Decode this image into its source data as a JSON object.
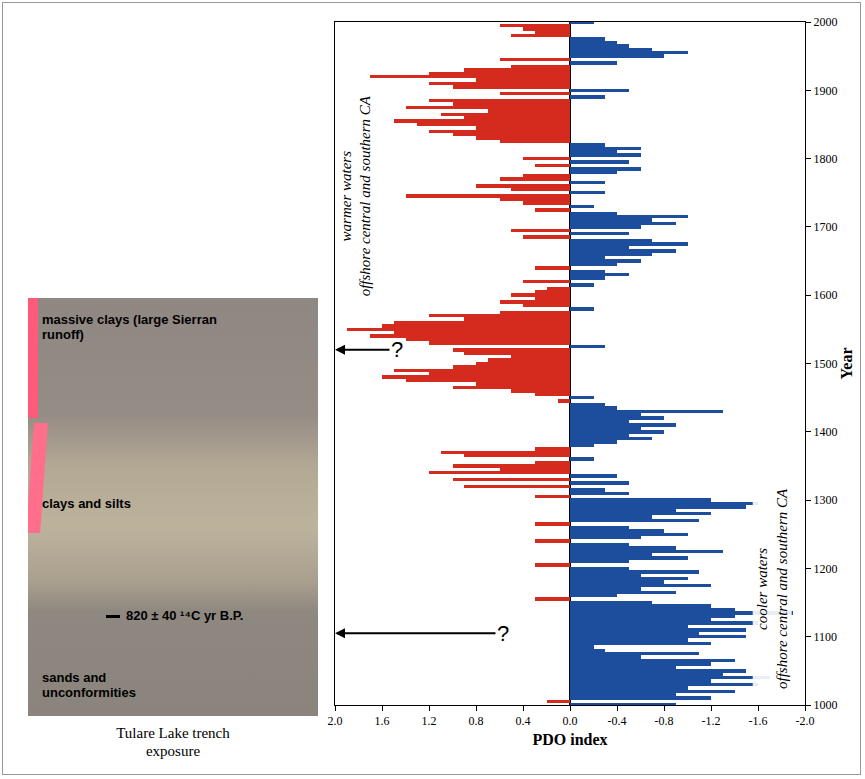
{
  "chart_data": {
    "type": "bar",
    "orientation": "horizontal",
    "xlabel": "PDO index",
    "ylabel": "Year",
    "xlim": [
      2.0,
      -2.0
    ],
    "xticks": [
      {
        "value": 2.0,
        "label": "2.0"
      },
      1.6,
      1.2,
      0.8,
      0.4,
      {
        "value": 0,
        "label": "0.0"
      },
      -0.4,
      -0.8,
      -1.2,
      -1.6,
      {
        "value": -2.0,
        "label": "-2.0"
      }
    ],
    "ylim": [
      1000,
      2000
    ],
    "yticks": [
      1000,
      1100,
      1200,
      1300,
      1400,
      1500,
      1600,
      1700,
      1800,
      1900,
      2000
    ],
    "grid": false,
    "y": [
      1000,
      1005,
      1010,
      1015,
      1020,
      1025,
      1030,
      1035,
      1040,
      1045,
      1050,
      1055,
      1060,
      1065,
      1070,
      1075,
      1080,
      1085,
      1090,
      1095,
      1100,
      1105,
      1110,
      1115,
      1120,
      1125,
      1130,
      1135,
      1140,
      1145,
      1150,
      1155,
      1160,
      1165,
      1170,
      1175,
      1180,
      1185,
      1190,
      1195,
      1200,
      1205,
      1210,
      1215,
      1220,
      1225,
      1230,
      1235,
      1240,
      1245,
      1250,
      1255,
      1260,
      1265,
      1270,
      1275,
      1280,
      1285,
      1290,
      1295,
      1300,
      1305,
      1310,
      1315,
      1320,
      1325,
      1330,
      1335,
      1340,
      1345,
      1350,
      1355,
      1360,
      1365,
      1370,
      1375,
      1380,
      1385,
      1390,
      1395,
      1400,
      1405,
      1410,
      1415,
      1420,
      1425,
      1430,
      1435,
      1440,
      1445,
      1450,
      1455,
      1460,
      1465,
      1470,
      1475,
      1480,
      1485,
      1490,
      1495,
      1500,
      1505,
      1510,
      1515,
      1520,
      1525,
      1530,
      1535,
      1540,
      1545,
      1550,
      1555,
      1560,
      1565,
      1570,
      1575,
      1580,
      1585,
      1590,
      1595,
      1600,
      1605,
      1610,
      1615,
      1620,
      1625,
      1630,
      1635,
      1640,
      1645,
      1650,
      1655,
      1660,
      1665,
      1670,
      1675,
      1680,
      1685,
      1690,
      1695,
      1700,
      1705,
      1710,
      1715,
      1720,
      1725,
      1730,
      1735,
      1740,
      1745,
      1750,
      1755,
      1760,
      1765,
      1770,
      1775,
      1780,
      1785,
      1790,
      1795,
      1800,
      1805,
      1810,
      1815,
      1820,
      1825,
      1830,
      1835,
      1840,
      1845,
      1850,
      1855,
      1860,
      1865,
      1870,
      1875,
      1880,
      1885,
      1890,
      1895,
      1900,
      1905,
      1910,
      1915,
      1920,
      1925,
      1930,
      1935,
      1940,
      1945,
      1950,
      1955,
      1960,
      1965,
      1970,
      1975,
      1980,
      1985,
      1990,
      1995,
      2000
    ],
    "series": [
      {
        "color": "#d52b1e",
        "values": [
          null,
          0.2,
          null,
          null,
          null,
          null,
          null,
          null,
          null,
          null,
          null,
          null,
          null,
          null,
          null,
          null,
          null,
          null,
          null,
          null,
          null,
          null,
          null,
          null,
          null,
          null,
          null,
          null,
          null,
          null,
          null,
          0.3,
          null,
          null,
          null,
          null,
          null,
          null,
          null,
          null,
          null,
          0.3,
          null,
          null,
          null,
          null,
          null,
          null,
          0.3,
          null,
          null,
          null,
          null,
          0.3,
          null,
          null,
          null,
          null,
          null,
          null,
          null,
          0.3,
          null,
          null,
          0.9,
          null,
          1.0,
          null,
          1.2,
          0.6,
          1.0,
          0.3,
          null,
          0.9,
          1.1,
          0.3,
          null,
          null,
          null,
          null,
          null,
          null,
          null,
          null,
          null,
          null,
          null,
          null,
          null,
          0.1,
          null,
          0.3,
          0.5,
          1.0,
          0.8,
          1.4,
          1.6,
          1.2,
          1.5,
          1.0,
          0.8,
          0.7,
          0.5,
          0.9,
          1.0,
          null,
          1.2,
          1.4,
          1.7,
          1.5,
          1.9,
          1.6,
          1.5,
          0.9,
          1.2,
          0.6,
          null,
          0.4,
          0.6,
          0.3,
          0.5,
          0.3,
          0.2,
          null,
          0.4,
          null,
          null,
          null,
          0.3,
          null,
          null,
          null,
          null,
          null,
          null,
          null,
          null,
          0.4,
          null,
          0.5,
          null,
          null,
          null,
          null,
          null,
          0.3,
          null,
          0.4,
          0.6,
          1.4,
          null,
          0.5,
          0.8,
          null,
          0.6,
          0.4,
          null,
          null,
          0.3,
          null,
          0.4,
          null,
          null,
          null,
          null,
          0.6,
          0.8,
          1.0,
          1.2,
          0.8,
          1.3,
          1.5,
          0.9,
          1.1,
          0.7,
          1.4,
          1.0,
          1.2,
          null,
          0.6,
          null,
          1.0,
          1.2,
          0.8,
          1.7,
          1.2,
          0.9,
          0.5,
          null,
          0.6,
          null,
          null,
          null,
          null,
          null,
          null,
          0.5,
          0.3,
          0.4,
          0.6,
          null
        ]
      },
      {
        "color": "#1d4e9e",
        "values": [
          -0.9,
          null,
          -1.2,
          -0.9,
          -1.4,
          -1.0,
          -1.6,
          -1.2,
          -1.7,
          -1.3,
          -1.5,
          -0.9,
          -1.2,
          -1.4,
          -0.6,
          -1.1,
          -0.3,
          -0.2,
          -1.2,
          -1.0,
          -1.5,
          -1.1,
          -1.5,
          -1.0,
          -1.6,
          -1.2,
          -1.4,
          -1.9,
          -1.4,
          -1.2,
          -0.7,
          null,
          -0.4,
          -0.9,
          -0.6,
          -1.2,
          -0.8,
          -1.0,
          -0.6,
          -1.1,
          -0.5,
          null,
          -0.5,
          -1.0,
          -0.7,
          -1.3,
          -0.9,
          -0.5,
          null,
          -0.6,
          -1.0,
          -0.8,
          -0.5,
          null,
          -1.1,
          -0.7,
          -1.2,
          -0.9,
          -1.5,
          -1.6,
          -1.2,
          null,
          -0.5,
          -0.3,
          null,
          -0.5,
          null,
          -0.4,
          null,
          null,
          null,
          null,
          -0.2,
          null,
          null,
          null,
          -0.2,
          -0.4,
          -0.7,
          -0.5,
          -0.8,
          -0.6,
          -0.9,
          -0.5,
          -0.8,
          -0.6,
          -1.3,
          -0.4,
          -0.3,
          null,
          -0.2,
          null,
          null,
          null,
          null,
          null,
          null,
          null,
          null,
          null,
          null,
          null,
          null,
          null,
          null,
          -0.3,
          null,
          null,
          null,
          null,
          null,
          null,
          null,
          null,
          null,
          null,
          -0.2,
          null,
          null,
          null,
          null,
          null,
          null,
          -0.2,
          null,
          -0.3,
          -0.5,
          -0.3,
          null,
          -0.4,
          -0.6,
          -0.3,
          -0.7,
          -0.9,
          -0.5,
          -1.0,
          -0.7,
          null,
          -0.5,
          null,
          -0.6,
          -0.9,
          -0.7,
          -1.0,
          -0.4,
          null,
          -0.2,
          null,
          null,
          null,
          -0.3,
          null,
          null,
          -0.3,
          null,
          null,
          -0.4,
          -0.6,
          null,
          -0.5,
          null,
          -0.6,
          -0.4,
          -0.6,
          -0.3,
          null,
          null,
          null,
          null,
          null,
          null,
          null,
          null,
          null,
          null,
          null,
          null,
          null,
          -0.3,
          null,
          -0.5,
          null,
          null,
          null,
          null,
          null,
          null,
          null,
          -0.4,
          null,
          -0.8,
          -1.0,
          -0.7,
          -0.5,
          -0.4,
          -0.3,
          null,
          null,
          null,
          null,
          -0.2
        ]
      }
    ],
    "annotations": [
      "warmer waters offshore central and southern CA",
      "cooler waters offshore central and southern CA",
      "?",
      "?"
    ]
  },
  "photo": {
    "labels": [
      "massive clays (large Sierran runoff)",
      "clays and silts",
      "820 ± 40 ¹⁴C yr B.P.",
      "sands and unconformities"
    ],
    "caption": "Tulare Lake trench exposure"
  }
}
